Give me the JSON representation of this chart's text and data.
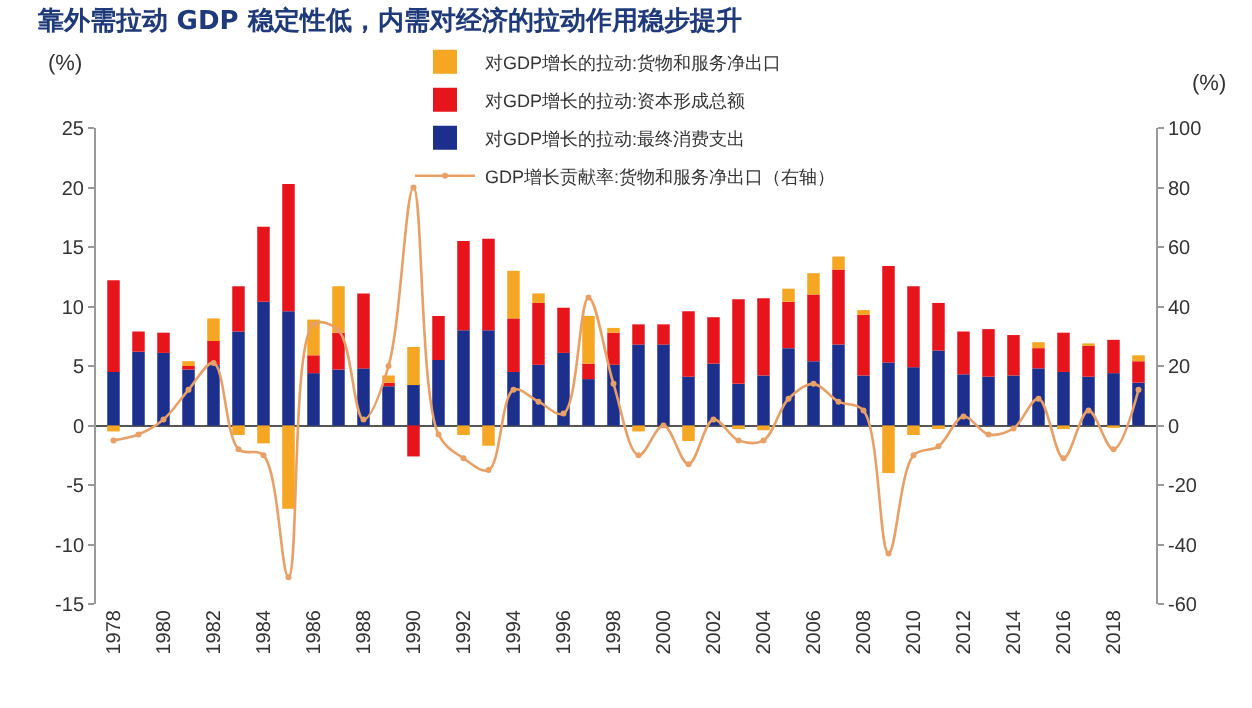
{
  "chart_data": {
    "type": "bar",
    "stacked": true,
    "title": "靠外需拉动 GDP 稳定性低，内需对经济的拉动作用稳步提升",
    "ylabel": "(%)",
    "y2label": "(%)",
    "categories": [
      "1978",
      null,
      "1980",
      null,
      "1982",
      null,
      "1984",
      null,
      "1986",
      null,
      "1988",
      null,
      "1990",
      null,
      "1992",
      null,
      "1994",
      null,
      "1996",
      null,
      "1998",
      null,
      "2000",
      null,
      "2002",
      null,
      "2004",
      null,
      "2006",
      null,
      "2008",
      null,
      "2010",
      null,
      "2012",
      null,
      "2014",
      null,
      "2016",
      null,
      "2018",
      null
    ],
    "series": [
      {
        "name": "对GDP增长的拉动:最终消费支出",
        "color": "#1c2f8c",
        "values": [
          4.5,
          6.2,
          6.1,
          4.7,
          5.1,
          7.9,
          10.4,
          9.6,
          4.4,
          4.7,
          4.8,
          3.3,
          3.4,
          5.5,
          8.0,
          8.0,
          4.5,
          5.1,
          6.1,
          3.9,
          5.1,
          6.8,
          6.8,
          4.1,
          5.2,
          3.5,
          4.2,
          6.5,
          5.4,
          6.8,
          4.2,
          5.3,
          4.9,
          6.3,
          4.3,
          4.1,
          4.2,
          4.8,
          4.5,
          4.1,
          4.4,
          3.6
        ]
      },
      {
        "name": "对GDP增长的拉动:资本形成总额",
        "color": "#e8141c",
        "values": [
          7.7,
          1.7,
          1.7,
          0.3,
          2.0,
          3.8,
          6.3,
          10.7,
          1.5,
          3.1,
          6.3,
          0.3,
          -2.6,
          3.7,
          7.5,
          7.7,
          4.5,
          5.2,
          3.8,
          1.3,
          2.7,
          1.7,
          1.7,
          5.5,
          3.9,
          7.1,
          6.5,
          3.9,
          5.6,
          6.3,
          5.1,
          8.1,
          6.8,
          4.0,
          3.6,
          4.0,
          3.4,
          1.7,
          3.3,
          2.6,
          2.8,
          1.8
        ]
      },
      {
        "name": "对GDP增长的拉动:货物和服务净出口",
        "color": "#f5a623",
        "values": [
          -0.5,
          0,
          0,
          0.4,
          1.9,
          -0.8,
          -1.5,
          -7.0,
          3.0,
          3.9,
          0,
          0.6,
          3.2,
          0,
          -0.8,
          -1.7,
          4.0,
          0.8,
          0,
          4.0,
          0.4,
          -0.5,
          0,
          -1.3,
          0,
          -0.3,
          -0.4,
          1.1,
          1.8,
          1.1,
          0.4,
          -4.0,
          -0.8,
          -0.3,
          0,
          0,
          0,
          0.5,
          -0.3,
          0.2,
          -0.2,
          0.5
        ]
      },
      {
        "name": "GDP增长贡献率:货物和服务净出口（右轴）",
        "type": "line",
        "axis": "y2",
        "color": "#e8a066",
        "values": [
          -5,
          -3,
          2,
          12,
          21,
          -8,
          -10,
          -51,
          34,
          32,
          2,
          20,
          80,
          -3,
          -11,
          -15,
          12,
          8,
          4,
          43,
          14,
          -10,
          0,
          -13,
          2,
          -5,
          -5,
          9,
          14,
          8,
          5,
          -43,
          -10,
          -7,
          3,
          -3,
          -1,
          9,
          -11,
          5,
          -8,
          12
        ]
      }
    ],
    "ylim": [
      -15,
      25
    ],
    "yticks": [
      -15,
      -10,
      -5,
      0,
      5,
      10,
      15,
      20,
      25
    ],
    "y2lim": [
      -60,
      100
    ],
    "y2ticks": [
      -60,
      -40,
      -20,
      0,
      20,
      40,
      60,
      80,
      100
    ],
    "legend": "top",
    "marker": "circle",
    "line_style": "solid"
  }
}
